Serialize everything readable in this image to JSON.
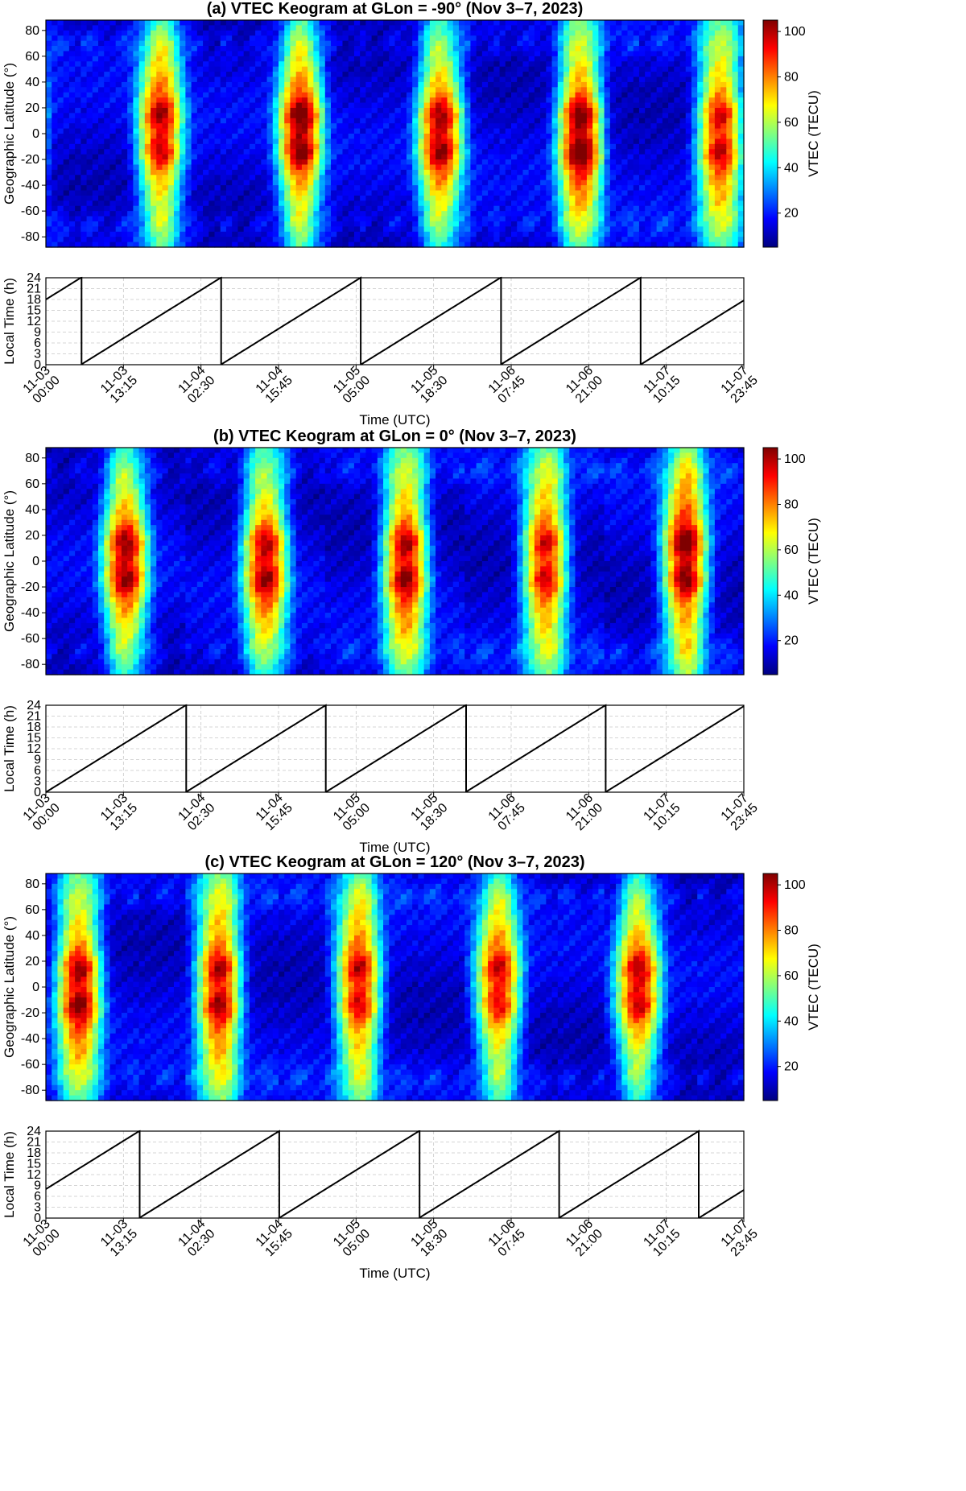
{
  "colorscale": {
    "stops": [
      "#00007f",
      "#0000ff",
      "#0080ff",
      "#00ffff",
      "#80ff80",
      "#ffff00",
      "#ff8000",
      "#ff0000",
      "#7f0000"
    ],
    "vmin": 5,
    "vmax": 105,
    "ticks": [
      20,
      40,
      60,
      80,
      100
    ],
    "label": "VTEC (TECU)"
  },
  "time_axis": {
    "tick_labels": [
      [
        "11-03",
        "00:00"
      ],
      [
        "11-03",
        "13:15"
      ],
      [
        "11-04",
        "02:30"
      ],
      [
        "11-04",
        "15:45"
      ],
      [
        "11-05",
        "05:00"
      ],
      [
        "11-05",
        "18:30"
      ],
      [
        "11-06",
        "07:45"
      ],
      [
        "11-06",
        "21:00"
      ],
      [
        "11-07",
        "10:15"
      ],
      [
        "11-07",
        "23:45"
      ]
    ],
    "label": "Time (UTC)",
    "start_hours": 0,
    "end_hours": 119.75
  },
  "chart_data": [
    {
      "type": "heatmap",
      "title": "(a) VTEC Keogram at GLon = -90° (Nov 3–7, 2023)",
      "glon": -90,
      "xlabel": "Time (UTC)",
      "ylabel": "Geographic Latitude (°)",
      "ylim": [
        -88,
        88
      ],
      "yticks": [
        -80,
        -60,
        -40,
        -20,
        0,
        20,
        40,
        60,
        80
      ],
      "colorbar_label": "VTEC (TECU)",
      "daytime_peaks_vtec": [
        95,
        100,
        95,
        105,
        95
      ],
      "local_time": {
        "ylabel": "Local Time (h)",
        "ylim": [
          0,
          24
        ],
        "yticks": [
          0,
          3,
          6,
          9,
          12,
          15,
          18,
          21,
          24
        ],
        "offset_hours": -6
      }
    },
    {
      "type": "heatmap",
      "title": "(b) VTEC Keogram at GLon = 0° (Nov 3–7, 2023)",
      "glon": 0,
      "xlabel": "Time (UTC)",
      "ylabel": "Geographic Latitude (°)",
      "ylim": [
        -88,
        88
      ],
      "yticks": [
        -80,
        -60,
        -40,
        -20,
        0,
        20,
        40,
        60,
        80
      ],
      "colorbar_label": "VTEC (TECU)",
      "daytime_peaks_vtec": [
        95,
        95,
        100,
        95,
        105
      ],
      "local_time": {
        "ylabel": "Local Time (h)",
        "ylim": [
          0,
          24
        ],
        "yticks": [
          0,
          3,
          6,
          9,
          12,
          15,
          18,
          21,
          24
        ],
        "offset_hours": 0
      }
    },
    {
      "type": "heatmap",
      "title": "(c) VTEC Keogram at GLon = 120° (Nov 3–7, 2023)",
      "glon": 120,
      "xlabel": "Time (UTC)",
      "ylabel": "Geographic Latitude (°)",
      "ylim": [
        -88,
        88
      ],
      "yticks": [
        -80,
        -60,
        -40,
        -20,
        0,
        20,
        40,
        60,
        80
      ],
      "colorbar_label": "VTEC (TECU)",
      "daytime_peaks_vtec": [
        100,
        100,
        95,
        90,
        90
      ],
      "local_time": {
        "ylabel": "Local Time (h)",
        "ylim": [
          0,
          24
        ],
        "yticks": [
          0,
          3,
          6,
          9,
          12,
          15,
          18,
          21,
          24
        ],
        "offset_hours": 8
      }
    }
  ]
}
